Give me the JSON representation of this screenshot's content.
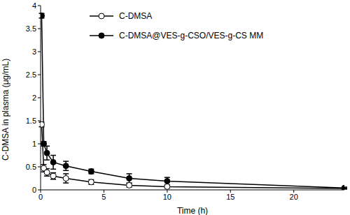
{
  "chart_data": {
    "type": "line",
    "x_label": "Time (h)",
    "y_label": "C-DMSA in plasma (μg/mL)",
    "x": [
      0.083,
      0.25,
      0.5,
      1,
      2,
      4,
      7,
      10,
      24
    ],
    "series": [
      {
        "name": "C-DMSA",
        "color": "#000000",
        "marker": "open_circle",
        "values": [
          1.42,
          0.47,
          0.38,
          0.3,
          0.25,
          0.17,
          0.1,
          0.07,
          0.03
        ],
        "errors": [
          0.05,
          0.08,
          0.08,
          0.07,
          0.1,
          0.05,
          0.04,
          0.03,
          0.01
        ]
      },
      {
        "name": "C-DMSA@VES-g-CSO/VES-g-CS MM",
        "color": "#000000",
        "marker": "circle",
        "values": [
          3.78,
          1.0,
          0.8,
          0.6,
          0.52,
          0.4,
          0.25,
          0.19,
          0.04
        ],
        "errors": [
          0.05,
          0.05,
          0.15,
          0.15,
          0.1,
          0.05,
          0.1,
          0.08,
          0.02
        ]
      }
    ],
    "xlim": [
      0,
      24
    ],
    "xticks": [
      0,
      5,
      10,
      15,
      20
    ],
    "ylim": [
      0,
      4
    ],
    "yticks": [
      0,
      0.5,
      1,
      1.5,
      2,
      2.5,
      3,
      3.5,
      4
    ],
    "grid": false,
    "legend": "top"
  }
}
